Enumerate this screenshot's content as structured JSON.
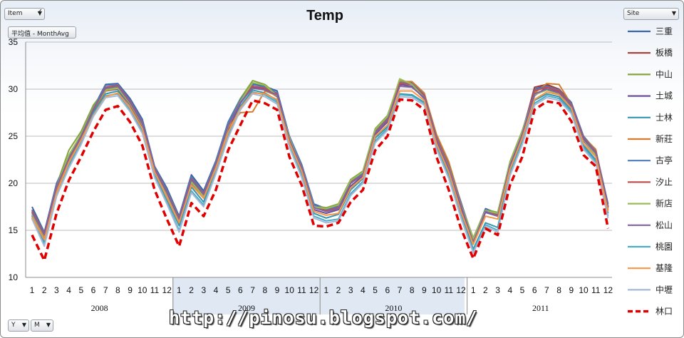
{
  "controls": {
    "item_label": "Item",
    "measure_label": "平均值 - MonthAvg",
    "site_label": "Site",
    "y_label": "Y",
    "m_label": "M"
  },
  "watermark": "http://pinosu.blogspot.com/",
  "colors": {
    "三重": "#3a64a6",
    "板橋": "#a33a36",
    "中山": "#85a33e",
    "土城": "#6c4f96",
    "士林": "#3795ad",
    "新莊": "#d77c2c",
    "古亭": "#4f7dba",
    "汐止": "#c0504d",
    "新店": "#9bbb59",
    "松山": "#8064a2",
    "桃園": "#4bacc6",
    "基隆": "#f79646",
    "中壢": "#a5b8d6",
    "林口": "#e00000"
  },
  "chart_data": {
    "type": "line",
    "title": "Temp",
    "xlabel": "",
    "ylabel": "",
    "ylim": [
      10,
      35
    ],
    "yticks": [
      10,
      15,
      20,
      25,
      30,
      35
    ],
    "grid": true,
    "legend_position": "right",
    "years": [
      "2008",
      "2009",
      "2010",
      "2011"
    ],
    "categories": [
      "1",
      "2",
      "3",
      "4",
      "5",
      "6",
      "7",
      "8",
      "9",
      "10",
      "11",
      "12",
      "1",
      "2",
      "3",
      "4",
      "5",
      "6",
      "7",
      "8",
      "9",
      "10",
      "11",
      "12",
      "1",
      "2",
      "3",
      "4",
      "5",
      "6",
      "7",
      "8",
      "9",
      "10",
      "11",
      "12",
      "1",
      "2",
      "3",
      "4",
      "5",
      "6",
      "7",
      "8",
      "9",
      "10",
      "11",
      "12"
    ],
    "series": [
      {
        "name": "三重",
        "values": [
          17.5,
          14.8,
          20.0,
          22.8,
          25.2,
          28.0,
          30.5,
          30.6,
          29.0,
          26.8,
          21.8,
          19.5,
          16.5,
          20.9,
          19.2,
          22.4,
          26.5,
          29.0,
          30.6,
          30.3,
          29.8,
          25.0,
          22.0,
          17.8,
          17.3,
          17.6,
          20.3,
          21.1,
          25.6,
          27.0,
          30.8,
          30.7,
          29.5,
          25.0,
          22.0,
          18.0,
          14.0,
          17.3,
          16.8,
          22.2,
          25.5,
          30.0,
          30.4,
          30.0,
          28.6,
          25.0,
          23.5,
          17.8
        ]
      },
      {
        "name": "板橋",
        "values": [
          17.0,
          14.5,
          19.5,
          22.5,
          25.0,
          28.0,
          30.0,
          30.5,
          28.6,
          26.5,
          21.5,
          19.0,
          16.3,
          20.3,
          18.8,
          22.2,
          26.0,
          28.8,
          30.3,
          30.0,
          29.5,
          24.8,
          21.8,
          17.5,
          17.0,
          17.5,
          20.0,
          21.0,
          25.5,
          26.8,
          30.7,
          30.5,
          29.3,
          24.8,
          21.7,
          17.6,
          13.8,
          17.0,
          16.7,
          22.0,
          25.3,
          30.2,
          30.5,
          30.0,
          28.5,
          24.8,
          23.3,
          17.5
        ]
      },
      {
        "name": "中山",
        "values": [
          16.8,
          14.5,
          19.8,
          23.5,
          25.5,
          28.3,
          30.0,
          30.2,
          28.6,
          26.3,
          21.6,
          18.8,
          16.2,
          20.2,
          18.7,
          22.3,
          26.3,
          29.0,
          30.9,
          30.5,
          29.4,
          24.9,
          21.7,
          17.6,
          17.4,
          17.8,
          20.4,
          21.3,
          25.8,
          27.2,
          30.9,
          30.6,
          29.2,
          24.7,
          21.8,
          17.8,
          14.2,
          17.2,
          16.9,
          22.3,
          25.6,
          29.5,
          30.0,
          29.6,
          28.4,
          24.7,
          23.1,
          17.2
        ]
      },
      {
        "name": "土城",
        "values": [
          16.6,
          14.2,
          19.3,
          22.3,
          24.8,
          27.7,
          29.8,
          30.0,
          28.3,
          26.0,
          21.2,
          18.6,
          16.0,
          20.0,
          18.5,
          21.8,
          25.7,
          28.5,
          30.2,
          30.0,
          29.2,
          24.5,
          21.4,
          17.2,
          16.8,
          17.2,
          19.7,
          20.8,
          25.2,
          26.5,
          30.5,
          30.3,
          29.0,
          24.4,
          21.4,
          17.3,
          13.6,
          16.9,
          16.5,
          21.8,
          25.0,
          29.3,
          30.2,
          29.7,
          28.2,
          24.5,
          23.0,
          17.2
        ]
      },
      {
        "name": "士林",
        "values": [
          16.5,
          13.8,
          19.0,
          22.0,
          24.5,
          27.5,
          29.5,
          29.8,
          28.0,
          25.8,
          21.0,
          18.3,
          15.5,
          19.6,
          18.0,
          21.5,
          25.3,
          28.2,
          29.9,
          29.6,
          28.8,
          24.2,
          21.0,
          16.8,
          16.3,
          16.7,
          19.3,
          20.5,
          24.8,
          26.0,
          29.5,
          29.4,
          28.6,
          24.0,
          21.0,
          16.8,
          13.0,
          15.8,
          15.3,
          21.3,
          24.6,
          28.8,
          29.5,
          29.2,
          27.8,
          24.0,
          22.5,
          16.8
        ]
      },
      {
        "name": "新莊",
        "values": [
          16.8,
          14.3,
          19.4,
          22.5,
          25.0,
          27.8,
          29.8,
          30.1,
          28.4,
          26.2,
          21.4,
          18.8,
          16.1,
          20.1,
          18.6,
          21.9,
          25.9,
          27.5,
          27.6,
          29.8,
          29.3,
          24.7,
          21.6,
          17.4,
          17.1,
          17.4,
          20.0,
          21.0,
          25.4,
          26.7,
          30.8,
          30.8,
          29.6,
          25.2,
          22.3,
          17.9,
          14.0,
          17.2,
          16.6,
          22.0,
          25.4,
          29.6,
          30.6,
          30.5,
          28.4,
          24.9,
          23.6,
          17.4
        ]
      },
      {
        "name": "古亭",
        "values": [
          17.2,
          14.7,
          19.9,
          22.7,
          25.1,
          27.9,
          30.4,
          30.5,
          28.8,
          26.6,
          21.7,
          19.3,
          16.4,
          20.7,
          19.0,
          22.3,
          26.4,
          28.9,
          30.5,
          30.2,
          29.6,
          24.9,
          21.9,
          17.7,
          17.2,
          17.5,
          20.2,
          21.0,
          25.5,
          26.9,
          30.7,
          30.6,
          29.4,
          24.9,
          21.9,
          17.9,
          13.9,
          17.2,
          16.7,
          22.1,
          25.4,
          29.9,
          30.3,
          29.9,
          28.5,
          24.9,
          23.4,
          17.6
        ]
      },
      {
        "name": "汐止",
        "values": [
          17.1,
          14.6,
          19.7,
          22.6,
          25.0,
          27.8,
          30.2,
          30.4,
          28.7,
          26.4,
          21.6,
          19.1,
          16.3,
          20.5,
          18.9,
          22.1,
          26.1,
          28.7,
          30.3,
          30.1,
          29.5,
          24.7,
          21.7,
          17.5,
          17.1,
          17.4,
          20.1,
          20.9,
          25.4,
          26.8,
          30.6,
          30.5,
          29.3,
          24.8,
          21.8,
          17.8,
          13.8,
          17.1,
          16.6,
          22.0,
          25.3,
          29.8,
          30.2,
          29.8,
          28.4,
          24.8,
          23.3,
          17.5
        ]
      },
      {
        "name": "新店",
        "values": [
          16.7,
          14.4,
          19.6,
          23.0,
          25.2,
          28.0,
          29.9,
          30.1,
          28.5,
          26.2,
          21.5,
          18.7,
          16.1,
          20.1,
          18.6,
          22.1,
          26.0,
          28.7,
          30.7,
          30.4,
          29.3,
          24.8,
          21.6,
          17.5,
          17.3,
          17.7,
          20.3,
          21.2,
          25.7,
          27.1,
          31.1,
          30.5,
          29.1,
          24.6,
          21.7,
          17.7,
          14.1,
          17.1,
          16.8,
          22.2,
          25.5,
          29.4,
          29.9,
          29.5,
          28.3,
          24.6,
          23.0,
          17.1
        ]
      },
      {
        "name": "松山",
        "values": [
          16.9,
          14.5,
          19.6,
          22.6,
          25.0,
          27.9,
          30.1,
          30.3,
          28.6,
          26.3,
          21.5,
          19.0,
          16.2,
          20.4,
          18.8,
          22.1,
          26.1,
          28.6,
          30.1,
          29.9,
          29.4,
          24.6,
          21.6,
          17.4,
          17.0,
          17.3,
          20.0,
          20.9,
          25.3,
          26.7,
          30.3,
          30.2,
          29.1,
          24.6,
          21.6,
          17.6,
          13.7,
          17.0,
          16.5,
          21.9,
          25.2,
          29.5,
          30.0,
          29.6,
          28.3,
          24.7,
          23.2,
          17.4
        ]
      },
      {
        "name": "桃園",
        "values": [
          16.3,
          13.5,
          18.8,
          21.8,
          24.3,
          27.3,
          29.3,
          29.5,
          27.8,
          25.5,
          20.8,
          18.0,
          15.0,
          19.2,
          17.7,
          21.2,
          25.0,
          28.0,
          29.7,
          29.4,
          28.6,
          24.0,
          20.8,
          16.5,
          16.0,
          16.2,
          18.9,
          20.2,
          24.5,
          25.8,
          29.4,
          29.3,
          28.5,
          23.8,
          20.7,
          16.5,
          12.8,
          15.6,
          15.0,
          21.0,
          24.3,
          28.5,
          29.3,
          29.0,
          27.6,
          23.8,
          22.3,
          16.5
        ]
      },
      {
        "name": "基隆",
        "values": [
          16.4,
          14.0,
          19.0,
          22.2,
          24.6,
          27.2,
          29.2,
          29.6,
          28.0,
          25.8,
          21.2,
          18.5,
          15.8,
          19.8,
          18.4,
          21.6,
          25.4,
          28.0,
          29.6,
          29.5,
          28.9,
          24.3,
          21.3,
          17.0,
          16.6,
          16.8,
          19.5,
          20.6,
          25.0,
          26.2,
          29.8,
          29.8,
          28.8,
          24.2,
          21.2,
          17.0,
          13.5,
          16.5,
          16.2,
          21.5,
          24.8,
          28.9,
          29.7,
          29.4,
          28.0,
          24.2,
          22.8,
          17.0
        ]
      },
      {
        "name": "中壢",
        "values": [
          16.2,
          13.3,
          18.6,
          21.6,
          24.1,
          27.1,
          29.1,
          29.3,
          27.6,
          25.3,
          20.6,
          17.8,
          14.8,
          19.0,
          17.5,
          21.0,
          24.8,
          27.8,
          29.5,
          29.2,
          28.4,
          23.8,
          20.6,
          16.3,
          15.8,
          16.0,
          18.7,
          20.0,
          24.3,
          25.6,
          29.2,
          29.1,
          28.3,
          23.6,
          20.5,
          16.3,
          12.6,
          15.4,
          14.8,
          20.8,
          24.1,
          28.3,
          29.1,
          28.8,
          27.4,
          23.6,
          22.1,
          16.3
        ]
      },
      {
        "name": "林口",
        "values": [
          14.5,
          11.8,
          16.8,
          20.3,
          22.8,
          25.5,
          27.8,
          28.2,
          26.5,
          24.0,
          19.3,
          16.2,
          13.3,
          17.9,
          16.5,
          19.3,
          23.5,
          26.2,
          28.8,
          28.5,
          27.8,
          22.8,
          19.8,
          15.5,
          15.4,
          15.8,
          18.0,
          19.3,
          23.5,
          25.0,
          28.9,
          28.8,
          27.8,
          22.8,
          19.3,
          15.2,
          12.0,
          15.2,
          14.5,
          19.8,
          22.8,
          27.8,
          28.7,
          28.5,
          26.6,
          23.0,
          21.8,
          15.2
        ]
      }
    ]
  }
}
